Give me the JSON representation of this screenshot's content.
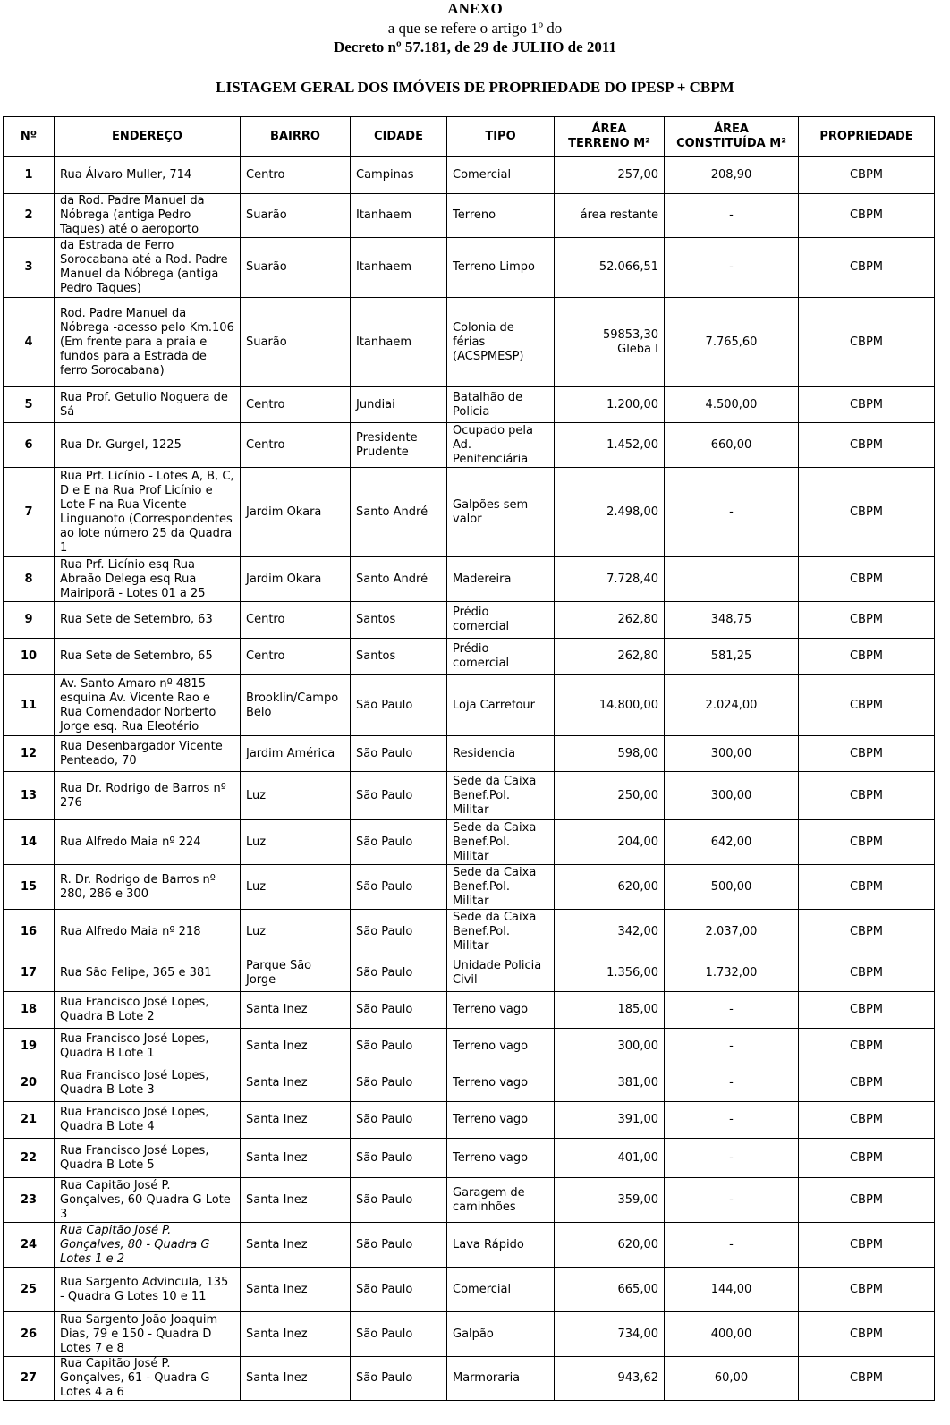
{
  "header": {
    "title": "ANEXO",
    "line2": "a que se refere o artigo 1º do",
    "line3": "Decreto nº 57.181, de 29 de JULHO de 2011",
    "subtitle": "LISTAGEM GERAL DOS IMÓVEIS DE PROPRIEDADE DO IPESP + CBPM"
  },
  "table": {
    "columns": [
      "Nº",
      "ENDEREÇO",
      "BAIRRO",
      "CIDADE",
      "TIPO",
      "ÁREA TERRENO M²",
      "ÁREA CONSTITUÍDA M²",
      "PROPRIEDADE"
    ],
    "rows": [
      [
        "1",
        "Rua Álvaro Muller, 714",
        "Centro",
        "Campinas",
        "Comercial",
        "257,00",
        "208,90",
        "CBPM"
      ],
      [
        "2",
        "da Rod. Padre Manuel da Nóbrega (antiga Pedro Taques) até o aeroporto",
        "Suarão",
        "Itanhaem",
        "Terreno",
        "área restante",
        "-",
        "CBPM"
      ],
      [
        "3",
        "da Estrada de Ferro Sorocabana até a Rod. Padre Manuel da Nóbrega (antiga Pedro Taques)",
        "Suarão",
        "Itanhaem",
        "Terreno Limpo",
        "52.066,51",
        "-",
        "CBPM"
      ],
      [
        "4",
        "Rod. Padre Manuel da Nóbrega -acesso pelo Km.106 (Em frente para a praia e fundos para a Estrada de ferro Sorocabana)",
        "Suarão",
        "Itanhaem",
        "Colonia de férias (ACSPMESP)",
        "59853,30\nGleba I",
        "7.765,60",
        "CBPM"
      ],
      [
        "5",
        "Rua Prof. Getulio Noguera de Sá",
        "Centro",
        "Jundiai",
        "Batalhão de Policia",
        "1.200,00",
        "4.500,00",
        "CBPM"
      ],
      [
        "6",
        "Rua Dr. Gurgel, 1225",
        "Centro",
        "Presidente Prudente",
        "Ocupado pela Ad. Penitenciária",
        "1.452,00",
        "660,00",
        "CBPM"
      ],
      [
        "7",
        "Rua Prf. Licínio - Lotes A, B, C, D e E na Rua Prof Licínio e Lote F na Rua Vicente Linguanoto (Correspondentes ao lote número 25 da Quadra 1",
        "Jardim Okara",
        "Santo André",
        "Galpões sem valor",
        "2.498,00",
        "-",
        "CBPM"
      ],
      [
        "8",
        "Rua Prf. Licínio esq Rua Abraão Delega esq Rua Mairiporã - Lotes 01 a 25",
        "Jardim Okara",
        "Santo André",
        "Madereira",
        "7.728,40",
        null,
        "CBPM"
      ],
      [
        "9",
        "Rua Sete de Setembro, 63",
        "Centro",
        "Santos",
        "Prédio comercial",
        "262,80",
        "348,75",
        "CBPM"
      ],
      [
        "10",
        "Rua Sete de Setembro, 65",
        "Centro",
        "Santos",
        "Prédio comercial",
        "262,80",
        "581,25",
        "CBPM"
      ],
      [
        "11",
        "Av. Santo Amaro nº 4815 esquina Av. Vicente Rao e Rua Comendador Norberto Jorge esq. Rua Eleotério",
        "Brooklin/Campo Belo",
        "São Paulo",
        "Loja Carrefour",
        "14.800,00",
        "2.024,00",
        "CBPM"
      ],
      [
        "12",
        "Rua Desenbargador Vicente Penteado, 70",
        "Jardim América",
        "São Paulo",
        "Residencia",
        "598,00",
        "300,00",
        "CBPM"
      ],
      [
        "13",
        "Rua Dr. Rodrigo de Barros nº 276",
        "Luz",
        "São Paulo",
        "Sede da Caixa Benef.Pol. Militar",
        "250,00",
        "300,00",
        "CBPM"
      ],
      [
        "14",
        "Rua Alfredo Maia nº 224",
        "Luz",
        "São Paulo",
        "Sede da Caixa Benef.Pol. Militar",
        "204,00",
        "642,00",
        "CBPM"
      ],
      [
        "15",
        "R. Dr. Rodrigo de Barros nº 280, 286 e 300",
        "Luz",
        "São Paulo",
        "Sede da Caixa Benef.Pol. Militar",
        "620,00",
        "500,00",
        "CBPM"
      ],
      [
        "16",
        "Rua Alfredo Maia nº 218",
        "Luz",
        "São Paulo",
        "Sede da Caixa Benef.Pol. Militar",
        "342,00",
        "2.037,00",
        "CBPM"
      ],
      [
        "17",
        "Rua São Felipe, 365 e 381",
        "Parque São Jorge",
        "São Paulo",
        "Unidade Policia Civil",
        "1.356,00",
        "1.732,00",
        "CBPM"
      ],
      [
        "18",
        "Rua Francisco José Lopes, Quadra B Lote 2",
        "Santa Inez",
        "São Paulo",
        "Terreno vago",
        "185,00",
        "-",
        "CBPM"
      ],
      [
        "19",
        "Rua Francisco José Lopes, Quadra B Lote 1",
        "Santa Inez",
        "São Paulo",
        "Terreno vago",
        "300,00",
        "-",
        "CBPM"
      ],
      [
        "20",
        "Rua Francisco José Lopes, Quadra B Lote 3",
        "Santa Inez",
        "São Paulo",
        "Terreno vago",
        "381,00",
        "-",
        "CBPM"
      ],
      [
        "21",
        "Rua Francisco José Lopes, Quadra B Lote 4",
        "Santa Inez",
        "São Paulo",
        "Terreno vago",
        "391,00",
        "-",
        "CBPM"
      ],
      [
        "22",
        "Rua Francisco José Lopes, Quadra B Lote 5",
        "Santa Inez",
        "São Paulo",
        "Terreno vago",
        "401,00",
        "-",
        "CBPM"
      ],
      [
        "23",
        "Rua Capitão José P. Gonçalves, 60 Quadra G Lote 3",
        "Santa Inez",
        "São Paulo",
        "Garagem de caminhões",
        "359,00",
        "-",
        "CBPM"
      ],
      [
        "24",
        "Rua Capitão José P. Gonçalves, 80 - Quadra G Lotes 1 e 2",
        "Santa Inez",
        "São Paulo",
        "Lava Rápido",
        "620,00",
        "-",
        "CBPM"
      ],
      [
        "25",
        "Rua Sargento Advincula, 135 - Quadra G Lotes 10 e 11",
        "Santa Inez",
        "São Paulo",
        "Comercial",
        "665,00",
        "144,00",
        "CBPM"
      ],
      [
        "26",
        "Rua Sargento João Joaquim Dias, 79 e 150 - Quadra D Lotes 7 e 8",
        "Santa Inez",
        "São Paulo",
        "Galpão",
        "734,00",
        "400,00",
        "CBPM"
      ],
      [
        "27",
        "Rua Capitão José P. Gonçalves, 61 - Quadra G Lotes 4 a 6",
        "Santa Inez",
        "São Paulo",
        "Marmoraria",
        "943,62",
        "60,00",
        "CBPM"
      ]
    ]
  }
}
